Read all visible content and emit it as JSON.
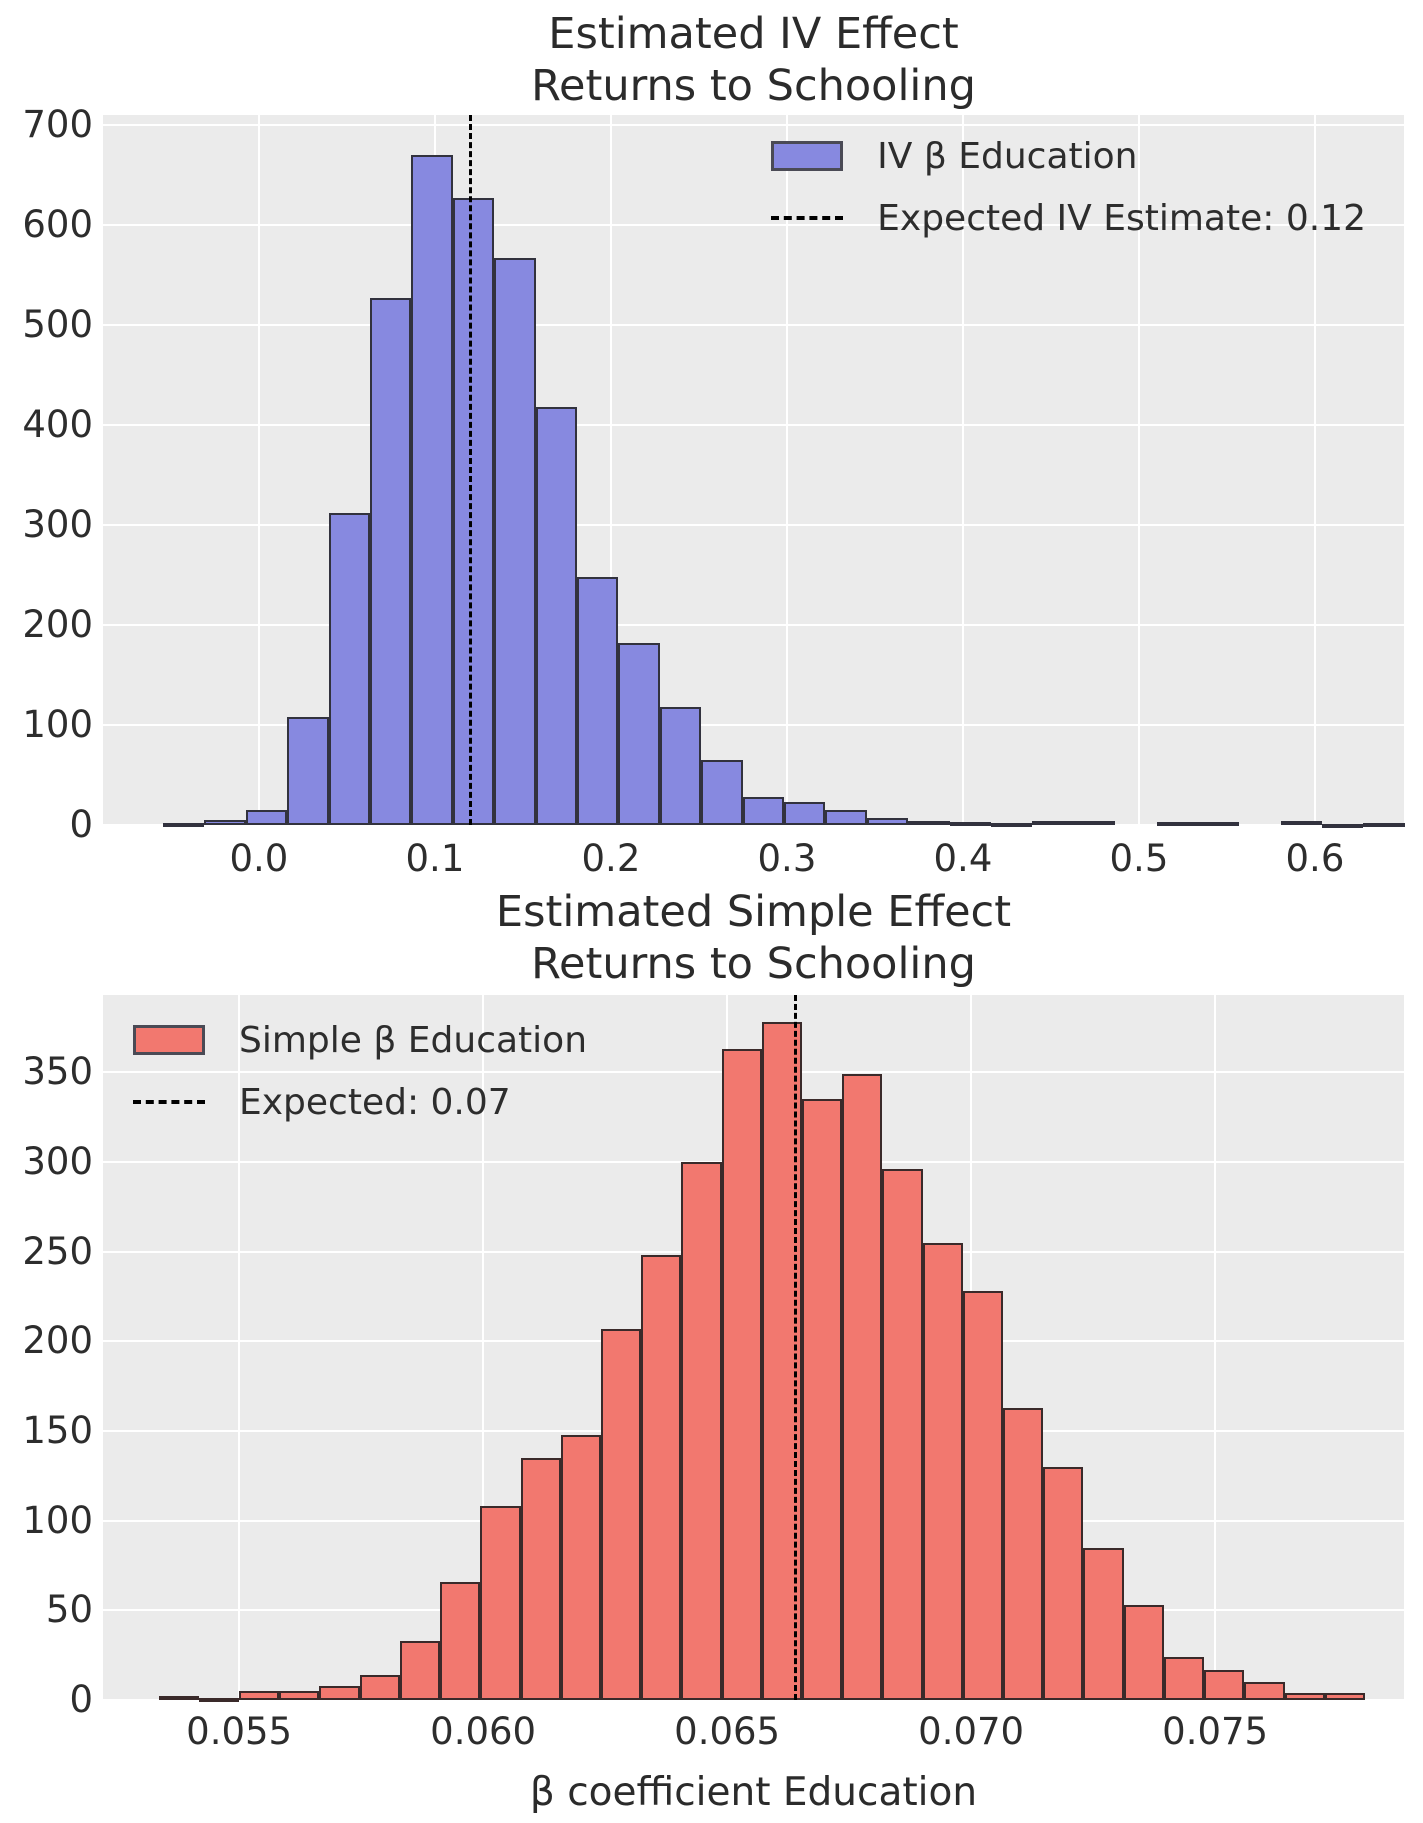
{
  "figure": {
    "background": "#ffffff",
    "plot_background": "#ebebeb",
    "grid_color": "#ffffff",
    "text_color": "#2d2d2d"
  },
  "charts": [
    {
      "id": "iv",
      "title": "Estimated IV Effect\nReturns to Schooling",
      "legend": {
        "series_label": "IV β Education",
        "line_label": "Expected IV Estimate: 0.12"
      },
      "bar_fill": "#8789e0",
      "bar_edge": "#32323e",
      "line_color": "#000000",
      "chart_data": {
        "type": "bar",
        "subtype": "histogram",
        "title": "Estimated IV Effect Returns to Schooling",
        "xlabel": "",
        "ylabel": "",
        "legend_position": "upper right",
        "grid": true,
        "expected_line_x": 0.12,
        "xlim": [
          -0.0886,
          0.6506
        ],
        "ylim": [
          0,
          710
        ],
        "xticks": [
          0.0,
          0.1,
          0.2,
          0.3,
          0.4,
          0.5,
          0.6
        ],
        "xtick_labels": [
          "0.0",
          "0.1",
          "0.2",
          "0.3",
          "0.4",
          "0.5",
          "0.6"
        ],
        "yticks": [
          0,
          100,
          200,
          300,
          400,
          500,
          600,
          700
        ],
        "ytick_labels": [
          "0",
          "100",
          "200",
          "300",
          "400",
          "500",
          "600",
          "700"
        ],
        "bin_start": -0.0545,
        "bin_width": 0.02352,
        "counts": [
          2,
          5,
          15,
          108,
          312,
          527,
          670,
          627,
          567,
          418,
          248,
          182,
          118,
          65,
          28,
          23,
          15,
          7,
          4,
          3,
          2,
          4,
          4,
          0,
          3,
          3,
          0,
          4,
          1,
          2
        ]
      }
    },
    {
      "id": "simple",
      "title": "Estimated Simple Effect\nReturns to Schooling",
      "xlabel": "β coefficient Education",
      "legend": {
        "series_label": "Simple β Education",
        "line_label": "Expected: 0.07"
      },
      "bar_fill": "#f2786f",
      "bar_edge": "#3a2a2a",
      "line_color": "#000000",
      "chart_data": {
        "type": "bar",
        "subtype": "histogram",
        "title": "Estimated Simple Effect Returns to Schooling",
        "xlabel": "β coefficient Education",
        "ylabel": "",
        "legend_position": "upper left",
        "grid": true,
        "expected_line_x": 0.0664,
        "xlim": [
          0.05221,
          0.07887
        ],
        "ylim": [
          0,
          393
        ],
        "xticks": [
          0.055,
          0.06,
          0.065,
          0.07,
          0.075
        ],
        "xtick_labels": [
          "0.055",
          "0.060",
          "0.065",
          "0.070",
          "0.075"
        ],
        "yticks": [
          0,
          50,
          100,
          150,
          200,
          250,
          300,
          350
        ],
        "ytick_labels": [
          "0",
          "50",
          "100",
          "150",
          "200",
          "250",
          "300",
          "350"
        ],
        "bin_start": 0.05335,
        "bin_width": 0.000824,
        "counts": [
          2,
          1,
          5,
          5,
          8,
          14,
          33,
          66,
          108,
          135,
          148,
          207,
          248,
          300,
          363,
          378,
          335,
          349,
          296,
          255,
          228,
          163,
          130,
          85,
          53,
          24,
          17,
          10,
          4,
          4
        ]
      }
    }
  ]
}
